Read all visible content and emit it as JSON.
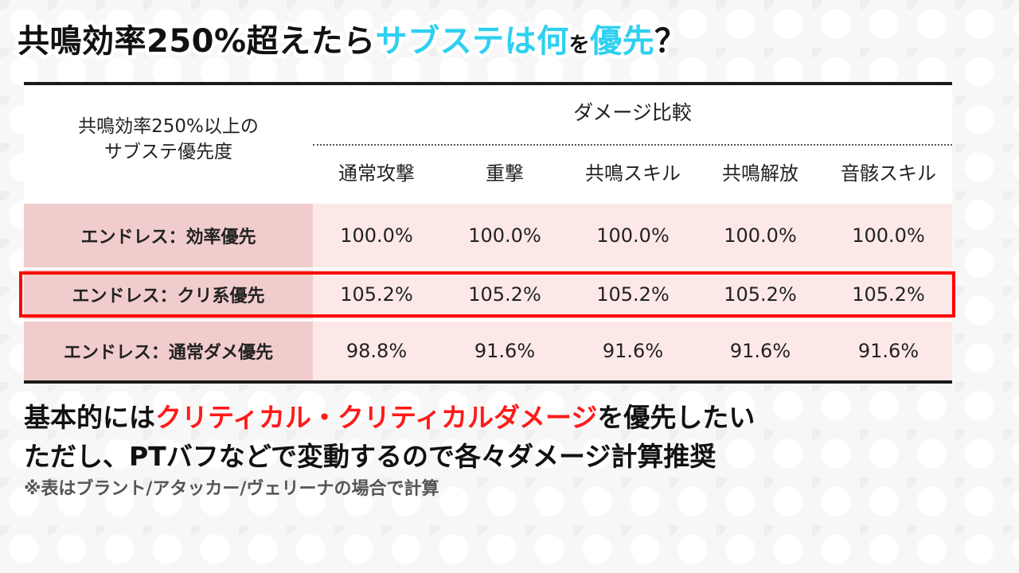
{
  "title": {
    "part1": "共鳴効率250%超えたら",
    "part2": "サブステは何",
    "part3": "を",
    "part4": "優先",
    "part5": "？"
  },
  "table": {
    "corner_label_line1": "共鳴効率250%以上の",
    "corner_label_line2": "サブステ優先度",
    "group_header": "ダメージ比較",
    "columns": [
      "通常攻撃",
      "重撃",
      "共鳴スキル",
      "共鳴解放",
      "音骸スキル"
    ],
    "rows": [
      {
        "label": "エンドレス：効率優先",
        "values": [
          "100.0%",
          "100.0%",
          "100.0%",
          "100.0%",
          "100.0%"
        ],
        "highlighted": false
      },
      {
        "label": "エンドレス：クリ系優先",
        "values": [
          "105.2%",
          "105.2%",
          "105.2%",
          "105.2%",
          "105.2%"
        ],
        "highlighted": true
      },
      {
        "label": "エンドレス：通常ダメ優先",
        "values": [
          "98.8%",
          "91.6%",
          "91.6%",
          "91.6%",
          "91.6%"
        ],
        "highlighted": false
      }
    ]
  },
  "notes": {
    "line1_prefix": "基本的には",
    "line1_highlight": "クリティカル・クリティカルダメージ",
    "line1_suffix": "を優先したい",
    "line2": "ただし、PTバフなどで変動するので各々ダメージ計算推奨",
    "line3": "※表はブラント/アタッカー/ヴェリーナの場合で計算"
  },
  "colors": {
    "title_accent": "#2fd0f0",
    "highlight_red": "#ff0000",
    "label_cell_bg": "#f1cccc",
    "value_cell_bg": "#fde8e8"
  }
}
